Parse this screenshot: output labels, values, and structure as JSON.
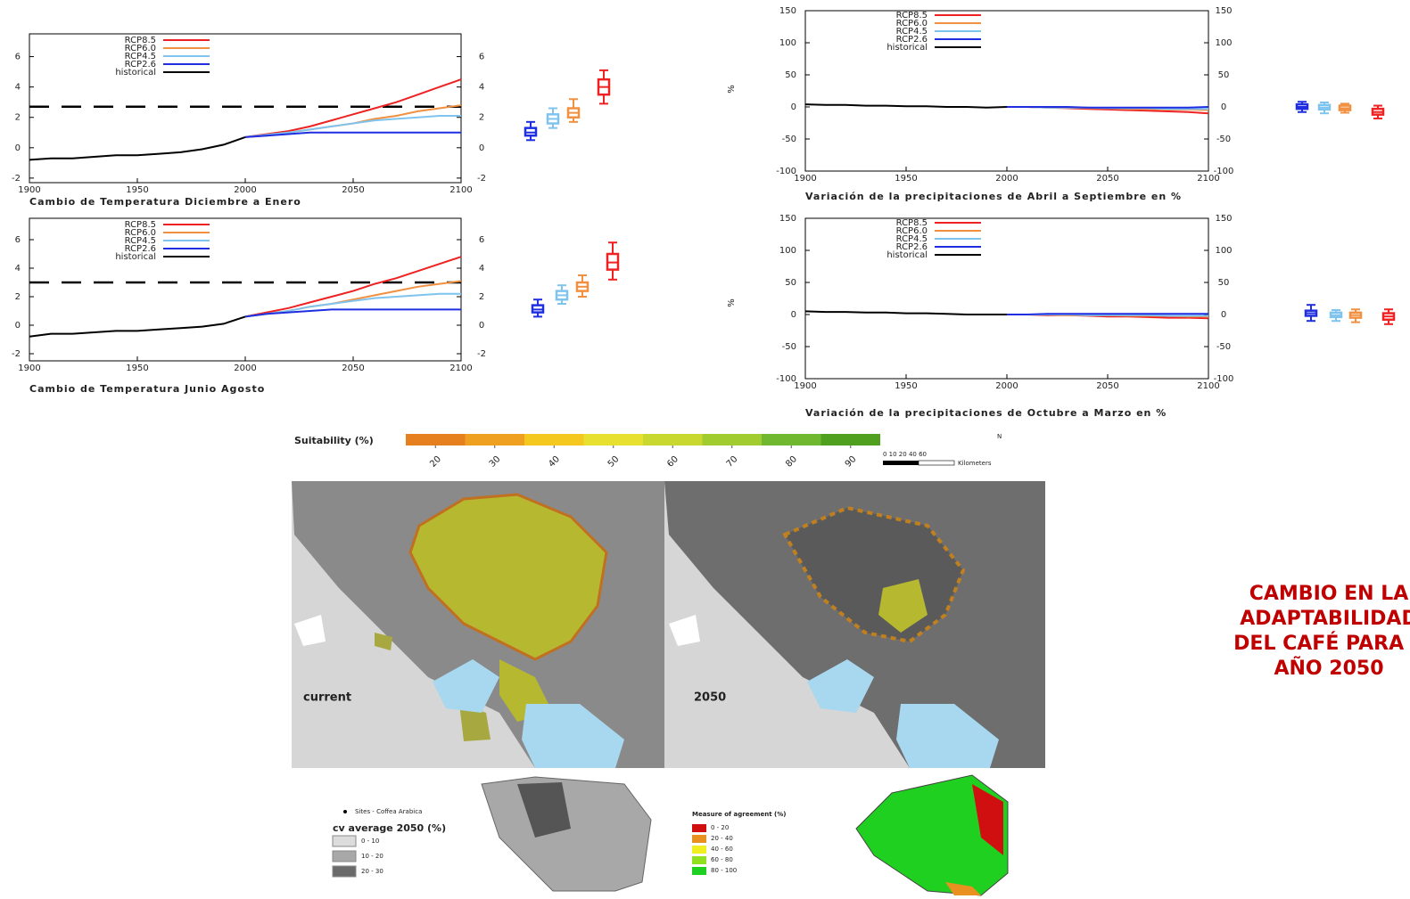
{
  "chart_data": [
    {
      "type": "line",
      "xlabel": "Cambio de Temperatura Diciembre a Enero",
      "x": [
        1900,
        1910,
        1920,
        1930,
        1940,
        1950,
        1960,
        1970,
        1980,
        1990,
        2000,
        2010,
        2020,
        2030,
        2040,
        2050,
        2060,
        2070,
        2080,
        2090,
        2100
      ],
      "xlim": [
        1900,
        2100
      ],
      "xticks": [
        1900,
        1950,
        2000,
        2050,
        2100
      ],
      "ylim": [
        -2.3,
        7.5
      ],
      "yticks": [
        -2,
        0,
        2,
        4,
        6
      ],
      "threshold": 2.7,
      "series": [
        {
          "name": "RCP8.5",
          "color": "#ee2222",
          "values": [
            null,
            null,
            null,
            null,
            null,
            null,
            null,
            null,
            null,
            null,
            0.7,
            0.9,
            1.1,
            1.4,
            1.8,
            2.2,
            2.6,
            3.0,
            3.5,
            4.0,
            4.5
          ],
          "box": [
            2.9,
            3.5,
            4.0,
            4.5,
            5.1
          ]
        },
        {
          "name": "RCP6.0",
          "color": "#f09040",
          "values": [
            null,
            null,
            null,
            null,
            null,
            null,
            null,
            null,
            null,
            null,
            0.7,
            0.8,
            1.0,
            1.2,
            1.4,
            1.6,
            1.9,
            2.1,
            2.4,
            2.6,
            2.8
          ],
          "box": [
            1.7,
            2.0,
            2.3,
            2.6,
            3.2
          ]
        },
        {
          "name": "RCP4.5",
          "color": "#7fc4ee",
          "values": [
            null,
            null,
            null,
            null,
            null,
            null,
            null,
            null,
            null,
            null,
            0.7,
            0.85,
            1.0,
            1.2,
            1.4,
            1.6,
            1.8,
            1.9,
            2.0,
            2.1,
            2.1
          ],
          "box": [
            1.3,
            1.6,
            1.9,
            2.2,
            2.6
          ]
        },
        {
          "name": "RCP2.6",
          "color": "#1f2fe0",
          "values": [
            null,
            null,
            null,
            null,
            null,
            null,
            null,
            null,
            null,
            null,
            0.7,
            0.8,
            0.9,
            1.0,
            1.0,
            1.0,
            1.0,
            1.0,
            1.0,
            1.0,
            1.0
          ],
          "box": [
            0.5,
            0.8,
            1.0,
            1.3,
            1.7
          ]
        },
        {
          "name": "historical",
          "color": "#000000",
          "values": [
            -0.8,
            -0.7,
            -0.7,
            -0.6,
            -0.5,
            -0.5,
            -0.4,
            -0.3,
            -0.1,
            0.2,
            0.7,
            null,
            null,
            null,
            null,
            null,
            null,
            null,
            null,
            null,
            null
          ]
        }
      ]
    },
    {
      "type": "line",
      "xlabel": "Cambio de Temperatura Junio Agosto",
      "x": [
        1900,
        1910,
        1920,
        1930,
        1940,
        1950,
        1960,
        1970,
        1980,
        1990,
        2000,
        2010,
        2020,
        2030,
        2040,
        2050,
        2060,
        2070,
        2080,
        2090,
        2100
      ],
      "xlim": [
        1900,
        2100
      ],
      "xticks": [
        1900,
        1950,
        2000,
        2050,
        2100
      ],
      "ylim": [
        -2.5,
        7.5
      ],
      "yticks": [
        -2,
        0,
        2,
        4,
        6
      ],
      "threshold": 3.0,
      "series": [
        {
          "name": "RCP8.5",
          "color": "#ee2222",
          "values": [
            null,
            null,
            null,
            null,
            null,
            null,
            null,
            null,
            null,
            null,
            0.6,
            0.9,
            1.2,
            1.6,
            2.0,
            2.4,
            2.9,
            3.3,
            3.8,
            4.3,
            4.8
          ],
          "box": [
            3.2,
            3.9,
            4.4,
            5.0,
            5.8
          ]
        },
        {
          "name": "RCP6.0",
          "color": "#f09040",
          "values": [
            null,
            null,
            null,
            null,
            null,
            null,
            null,
            null,
            null,
            null,
            0.6,
            0.8,
            1.0,
            1.3,
            1.5,
            1.8,
            2.1,
            2.4,
            2.7,
            2.9,
            3.1
          ],
          "box": [
            2.0,
            2.4,
            2.7,
            3.0,
            3.5
          ]
        },
        {
          "name": "RCP4.5",
          "color": "#7fc4ee",
          "values": [
            null,
            null,
            null,
            null,
            null,
            null,
            null,
            null,
            null,
            null,
            0.6,
            0.8,
            1.0,
            1.3,
            1.5,
            1.7,
            1.9,
            2.0,
            2.1,
            2.2,
            2.2
          ],
          "box": [
            1.5,
            1.8,
            2.1,
            2.4,
            2.8
          ]
        },
        {
          "name": "RCP2.6",
          "color": "#1f2fe0",
          "values": [
            null,
            null,
            null,
            null,
            null,
            null,
            null,
            null,
            null,
            null,
            0.6,
            0.8,
            0.9,
            1.0,
            1.1,
            1.1,
            1.1,
            1.1,
            1.1,
            1.1,
            1.1
          ],
          "box": [
            0.6,
            0.9,
            1.1,
            1.4,
            1.8
          ]
        },
        {
          "name": "historical",
          "color": "#000000",
          "values": [
            -0.8,
            -0.6,
            -0.6,
            -0.5,
            -0.4,
            -0.4,
            -0.3,
            -0.2,
            -0.1,
            0.1,
            0.6,
            null,
            null,
            null,
            null,
            null,
            null,
            null,
            null,
            null,
            null
          ]
        }
      ]
    },
    {
      "type": "line",
      "xlabel": "Variación de la precipitaciones de Abril a Septiembre en %",
      "ylabel": "%",
      "x": [
        1900,
        1910,
        1920,
        1930,
        1940,
        1950,
        1960,
        1970,
        1980,
        1990,
        2000,
        2010,
        2020,
        2030,
        2040,
        2050,
        2060,
        2070,
        2080,
        2090,
        2100
      ],
      "xlim": [
        1900,
        2100
      ],
      "xticks": [
        1900,
        1950,
        2000,
        2050,
        2100
      ],
      "ylim": [
        -100,
        150
      ],
      "yticks": [
        -100,
        -50,
        0,
        50,
        100,
        150
      ],
      "series": [
        {
          "name": "RCP8.5",
          "color": "#ee2222",
          "values": [
            null,
            null,
            null,
            null,
            null,
            null,
            null,
            null,
            null,
            null,
            0,
            0,
            -1,
            -2,
            -3,
            -4,
            -5,
            -6,
            -7,
            -8,
            -10
          ],
          "box": [
            -18,
            -12,
            -8,
            -3,
            2
          ]
        },
        {
          "name": "RCP6.0",
          "color": "#f09040",
          "values": [
            null,
            null,
            null,
            null,
            null,
            null,
            null,
            null,
            null,
            null,
            0,
            0,
            -1,
            -1,
            -2,
            -2,
            -3,
            -3,
            -4,
            -4,
            -5
          ],
          "box": [
            -9,
            -5,
            -2,
            2,
            5
          ]
        },
        {
          "name": "RCP4.5",
          "color": "#7fc4ee",
          "values": [
            null,
            null,
            null,
            null,
            null,
            null,
            null,
            null,
            null,
            null,
            0,
            0,
            -1,
            -1,
            -1,
            -2,
            -2,
            -2,
            -3,
            -3,
            -3
          ],
          "box": [
            -10,
            -4,
            -1,
            3,
            7
          ]
        },
        {
          "name": "RCP2.6",
          "color": "#1f2fe0",
          "values": [
            null,
            null,
            null,
            null,
            null,
            null,
            null,
            null,
            null,
            null,
            0,
            0,
            0,
            0,
            -1,
            -1,
            -1,
            -1,
            -1,
            -1,
            0
          ],
          "box": [
            -8,
            -3,
            0,
            4,
            8
          ]
        },
        {
          "name": "historical",
          "color": "#000000",
          "values": [
            4,
            3,
            3,
            2,
            2,
            1,
            1,
            0,
            0,
            -1,
            0,
            null,
            null,
            null,
            null,
            null,
            null,
            null,
            null,
            null,
            null
          ]
        }
      ]
    },
    {
      "type": "line",
      "xlabel": "Variación de la precipitaciones de Octubre a Marzo en %",
      "ylabel": "%",
      "x": [
        1900,
        1910,
        1920,
        1930,
        1940,
        1950,
        1960,
        1970,
        1980,
        1990,
        2000,
        2010,
        2020,
        2030,
        2040,
        2050,
        2060,
        2070,
        2080,
        2090,
        2100
      ],
      "xlim": [
        1900,
        2100
      ],
      "xticks": [
        1900,
        1950,
        2000,
        2050,
        2100
      ],
      "ylim": [
        -100,
        150
      ],
      "yticks": [
        -100,
        -50,
        0,
        50,
        100,
        150
      ],
      "series": [
        {
          "name": "RCP8.5",
          "color": "#ee2222",
          "values": [
            null,
            null,
            null,
            null,
            null,
            null,
            null,
            null,
            null,
            null,
            0,
            0,
            -1,
            -1,
            -2,
            -3,
            -3,
            -4,
            -5,
            -5,
            -6
          ],
          "box": [
            -15,
            -8,
            -3,
            2,
            8
          ]
        },
        {
          "name": "RCP6.0",
          "color": "#f09040",
          "values": [
            null,
            null,
            null,
            null,
            null,
            null,
            null,
            null,
            null,
            null,
            0,
            0,
            0,
            -1,
            -1,
            -1,
            -2,
            -2,
            -2,
            -3,
            -3
          ],
          "box": [
            -12,
            -5,
            -1,
            3,
            8
          ]
        },
        {
          "name": "RCP4.5",
          "color": "#7fc4ee",
          "values": [
            null,
            null,
            null,
            null,
            null,
            null,
            null,
            null,
            null,
            null,
            0,
            0,
            0,
            0,
            -1,
            -1,
            -1,
            -1,
            -2,
            -2,
            -2
          ],
          "box": [
            -10,
            -4,
            -1,
            3,
            7
          ]
        },
        {
          "name": "RCP2.6",
          "color": "#1f2fe0",
          "values": [
            null,
            null,
            null,
            null,
            null,
            null,
            null,
            null,
            null,
            null,
            0,
            0,
            1,
            1,
            1,
            1,
            1,
            1,
            1,
            1,
            1
          ],
          "box": [
            -10,
            -2,
            2,
            6,
            15
          ]
        },
        {
          "name": "historical",
          "color": "#000000",
          "values": [
            5,
            4,
            4,
            3,
            3,
            2,
            2,
            1,
            0,
            0,
            0,
            null,
            null,
            null,
            null,
            null,
            null,
            null,
            null,
            null,
            null
          ]
        }
      ]
    }
  ],
  "map": {
    "colorbar_title": "Suitability (%)",
    "colorbar_ticks": [
      20,
      30,
      40,
      50,
      60,
      70,
      80,
      90
    ],
    "colorbar_colors": [
      "#e6801f",
      "#f0a020",
      "#f5c820",
      "#e8e030",
      "#c8d830",
      "#a0cc30",
      "#70b830",
      "#50a020"
    ],
    "north": "N",
    "scale": "0 10 20   40   60",
    "scale_unit": "Kilometers",
    "panels": [
      "current",
      "2050"
    ],
    "inset_left": {
      "sites": "Sites - Coffea Arabica",
      "title": "cv average 2050 (%)",
      "classes": [
        "0 - 10",
        "10 - 20",
        "20 - 30"
      ],
      "colors": [
        "#dcdcdc",
        "#a8a8a8",
        "#6a6a6a"
      ]
    },
    "inset_right": {
      "title": "Measure of agreement (%)",
      "classes": [
        "0 - 20",
        "20 - 40",
        "40 - 60",
        "60 - 80",
        "80 - 100"
      ],
      "colors": [
        "#d01010",
        "#e89020",
        "#f0f020",
        "#90e020",
        "#20d020"
      ]
    }
  },
  "caption": [
    "CAMBIO EN LA",
    "ADAPTABILIDAD",
    "DEL CAFÉ PARA E",
    "AÑO 2050"
  ]
}
